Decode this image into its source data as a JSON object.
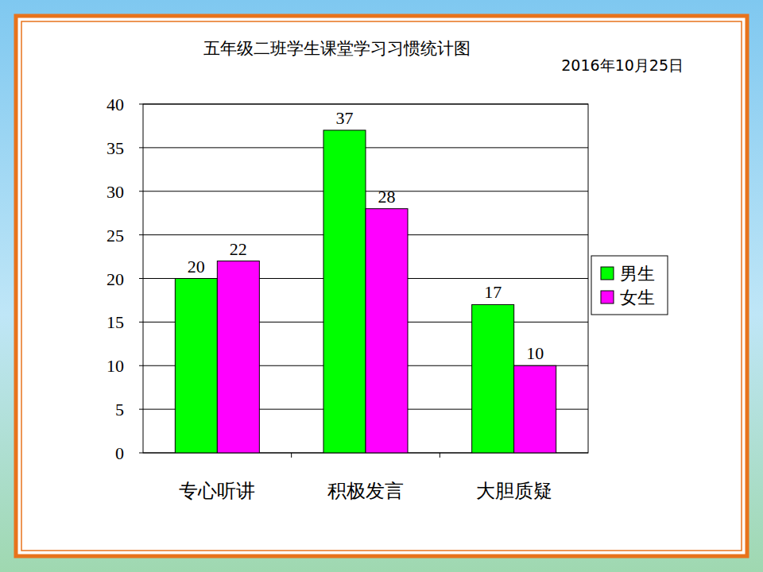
{
  "chart_data": {
    "type": "bar",
    "title": "五年级二班学生课堂学习习惯统计图",
    "subtitle": "2016年10月25日",
    "categories": [
      "专心听讲",
      "积极发言",
      "大胆质疑"
    ],
    "series": [
      {
        "name": "男生",
        "color": "#00ff00",
        "values": [
          20,
          37,
          17
        ]
      },
      {
        "name": "女生",
        "color": "#ff00ff",
        "values": [
          22,
          28,
          10
        ]
      }
    ],
    "ylim": [
      0,
      40
    ],
    "yticks": [
      0,
      5,
      10,
      15,
      20,
      25,
      30,
      35,
      40
    ],
    "grid": true,
    "data_labels": true,
    "legend": "right"
  }
}
